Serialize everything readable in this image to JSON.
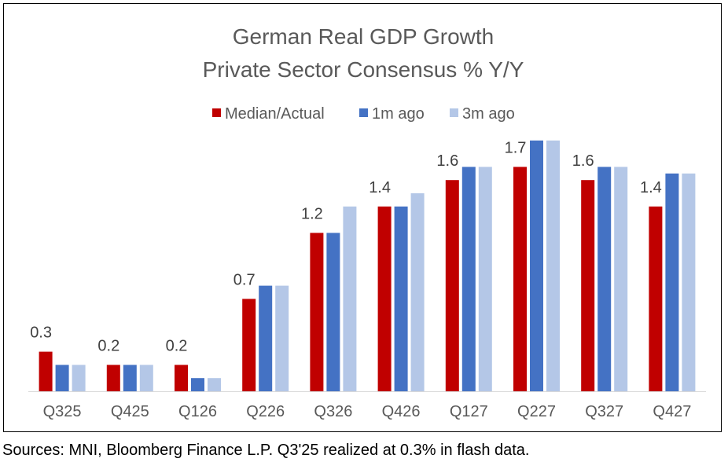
{
  "chart_data": {
    "type": "bar",
    "title_lines": [
      "German Real GDP Growth",
      "Private Sector Consensus % Y/Y"
    ],
    "categories": [
      "Q325",
      "Q425",
      "Q126",
      "Q226",
      "Q326",
      "Q426",
      "Q127",
      "Q227",
      "Q327",
      "Q427"
    ],
    "series": [
      {
        "name": "Median/Actual",
        "color": "#C00000",
        "values": [
          0.3,
          0.2,
          0.2,
          0.7,
          1.2,
          1.4,
          1.6,
          1.7,
          1.6,
          1.4
        ]
      },
      {
        "name": "1m ago",
        "color": "#4472C4",
        "values": [
          0.2,
          0.2,
          0.1,
          0.8,
          1.2,
          1.4,
          1.7,
          1.9,
          1.7,
          1.65
        ]
      },
      {
        "name": "3m ago",
        "color": "#B4C7E7",
        "values": [
          0.2,
          0.2,
          0.1,
          0.8,
          1.4,
          1.5,
          1.7,
          1.9,
          1.7,
          1.65
        ]
      }
    ],
    "data_labels": [
      "0.3",
      "0.2",
      "0.2",
      "0.7",
      "1.2",
      "1.4",
      "1.6",
      "1.7",
      "1.6",
      "1.4"
    ],
    "ylim": [
      0,
      2.0
    ],
    "grid": false,
    "legend_position": "top-center",
    "xlabel": "",
    "ylabel": ""
  },
  "source_note": "Sources: MNI, Bloomberg Finance L.P. Q3'25 realized at 0.3% in flash data."
}
